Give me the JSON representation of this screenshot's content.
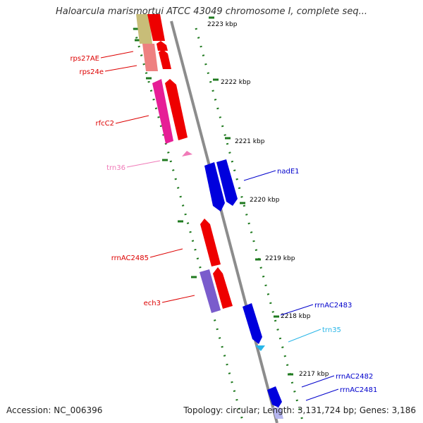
{
  "title": "Haloarcula marismortui ATCC 43049 chromosome I, complete seq...",
  "footer": {
    "accession": "Accession: NC_006396",
    "summary": "Topology: circular; Length: 3,131,724 bp; Genes: 3,186"
  },
  "ticks": [
    "2223 kbp",
    "2222 kbp",
    "2221 kbp",
    "2220 kbp",
    "2219 kbp",
    "2218 kbp",
    "2217 kbp"
  ],
  "gene_labels": {
    "rps27AE": "rps27AE",
    "rps24e": "rps24e",
    "rfcC2": "rfcC2",
    "trn36": "trn36",
    "rrnAC2485": "rrnAC2485",
    "ech3": "ech3",
    "nadE1": "nadE1",
    "rrnAC2483": "rrnAC2483",
    "trn35": "trn35",
    "rrnAC2482": "rrnAC2482",
    "rrnAC2481": "rrnAC2481"
  },
  "colors": {
    "backbone": "#8c8c8c",
    "tick": "#1f7a1f",
    "reverse_strand": "#ee0000",
    "forward_strand": "#0000dd",
    "trna_pink": "#f07ab8",
    "trna_cyan": "#29b6e8",
    "magenta": "#e61e96",
    "purple": "#7a5ccc",
    "salmon": "#ee8080",
    "khaki": "#c8bd78"
  }
}
